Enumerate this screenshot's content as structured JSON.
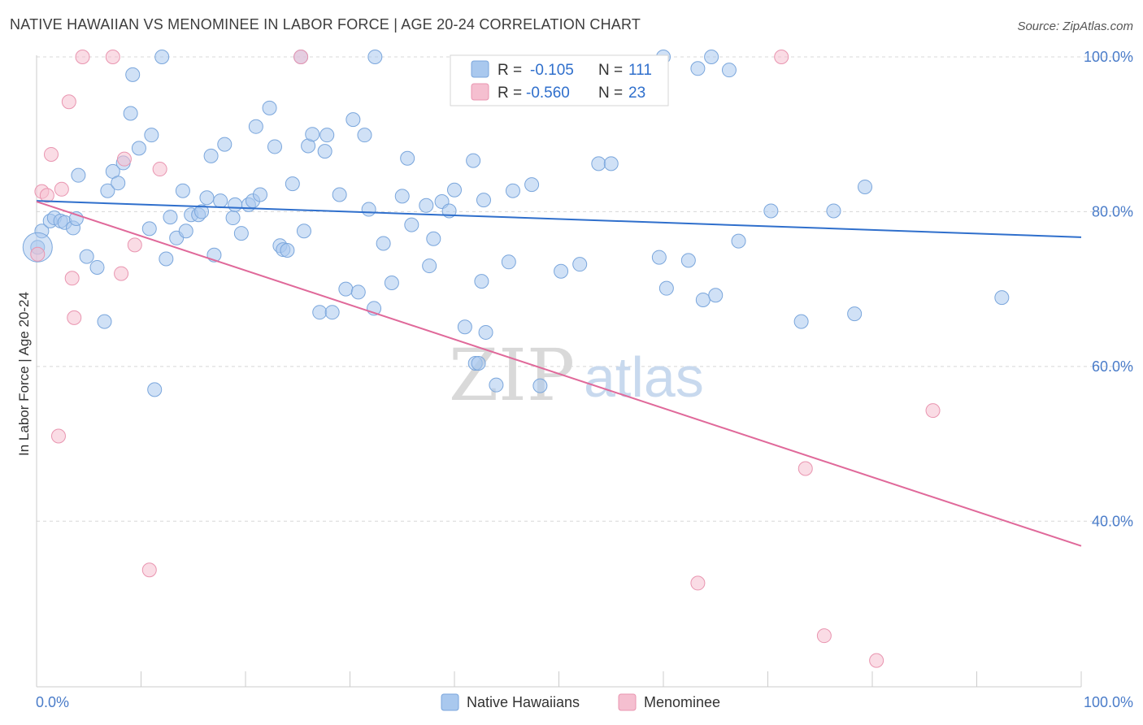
{
  "header": {
    "title": "NATIVE HAWAIIAN VS MENOMINEE IN LABOR FORCE | AGE 20-24 CORRELATION CHART",
    "source": "Source: ZipAtlas.com"
  },
  "watermark": {
    "zip": "ZIP",
    "atlas": "atlas"
  },
  "colors": {
    "blue_fill": "#a9c8ee",
    "blue_stroke": "#7aa6dc",
    "blue_line": "#2f6fcc",
    "pink_fill": "#f5bfd0",
    "pink_stroke": "#e995b0",
    "pink_line": "#e0699a",
    "grid": "#d8d8d8",
    "tick_text": "#4a7cc9"
  },
  "legend": {
    "rows": [
      {
        "r_label": "R =",
        "r_value": "-0.105",
        "n_label": "N =",
        "n_value": "111"
      },
      {
        "r_label": "R =",
        "r_value": "-0.560",
        "n_label": "N =",
        "n_value": "23"
      }
    ]
  },
  "bottom_legend": {
    "items": [
      "Native Hawaiians",
      "Menominee"
    ]
  },
  "chart_data": {
    "type": "scatter",
    "title": "NATIVE HAWAIIAN VS MENOMINEE IN LABOR FORCE | AGE 20-24 CORRELATION CHART",
    "xlabel": "",
    "ylabel": "In Labor Force | Age 20-24",
    "xlim": [
      0,
      100
    ],
    "ylim": [
      18.6,
      100
    ],
    "x_tick_labels": [
      "0.0%",
      "100.0%"
    ],
    "y_ticks": [
      40,
      60,
      80,
      100
    ],
    "y_tick_labels": [
      "40.0%",
      "60.0%",
      "80.0%",
      "100.0%"
    ],
    "grid": true,
    "legend_position": "top-center",
    "series": [
      {
        "name": "Native Hawaiians",
        "r": -0.105,
        "n": 111,
        "trend": {
          "x": [
            0,
            100
          ],
          "y": [
            81.4,
            76.7
          ]
        },
        "points": [
          [
            0.1,
            75.4
          ],
          [
            0.5,
            77.5
          ],
          [
            1.3,
            78.8
          ],
          [
            1.7,
            79.2
          ],
          [
            2.3,
            78.8
          ],
          [
            2.7,
            78.6
          ],
          [
            3.5,
            77.9
          ],
          [
            3.8,
            79.1
          ],
          [
            4.0,
            84.7
          ],
          [
            4.8,
            74.2
          ],
          [
            5.8,
            72.8
          ],
          [
            6.5,
            65.8
          ],
          [
            6.8,
            82.7
          ],
          [
            7.3,
            85.2
          ],
          [
            7.8,
            83.7
          ],
          [
            8.3,
            86.3
          ],
          [
            9.0,
            92.7
          ],
          [
            9.2,
            97.7
          ],
          [
            9.8,
            88.2
          ],
          [
            10.8,
            77.8
          ],
          [
            11.0,
            89.9
          ],
          [
            11.3,
            57.0
          ],
          [
            12.0,
            100
          ],
          [
            12.4,
            73.9
          ],
          [
            12.8,
            79.3
          ],
          [
            13.4,
            76.6
          ],
          [
            14.0,
            82.7
          ],
          [
            14.3,
            77.5
          ],
          [
            14.8,
            79.6
          ],
          [
            15.5,
            79.6
          ],
          [
            15.8,
            80.0
          ],
          [
            16.3,
            81.8
          ],
          [
            16.7,
            87.2
          ],
          [
            17.0,
            74.4
          ],
          [
            17.6,
            81.4
          ],
          [
            18.0,
            88.7
          ],
          [
            18.8,
            79.2
          ],
          [
            19.0,
            80.9
          ],
          [
            19.6,
            77.2
          ],
          [
            20.3,
            80.9
          ],
          [
            20.7,
            81.4
          ],
          [
            21.0,
            91.0
          ],
          [
            21.4,
            82.2
          ],
          [
            22.3,
            93.4
          ],
          [
            22.8,
            88.4
          ],
          [
            23.3,
            75.6
          ],
          [
            23.6,
            75.1
          ],
          [
            24.0,
            75.0
          ],
          [
            24.5,
            83.6
          ],
          [
            25.3,
            100
          ],
          [
            25.6,
            77.5
          ],
          [
            26.0,
            88.5
          ],
          [
            26.4,
            90.0
          ],
          [
            27.1,
            67.0
          ],
          [
            27.6,
            87.8
          ],
          [
            27.8,
            89.9
          ],
          [
            28.3,
            67.0
          ],
          [
            29.0,
            82.2
          ],
          [
            29.6,
            70.0
          ],
          [
            30.3,
            91.9
          ],
          [
            30.8,
            69.6
          ],
          [
            31.4,
            89.9
          ],
          [
            31.8,
            80.3
          ],
          [
            32.3,
            67.5
          ],
          [
            32.4,
            100
          ],
          [
            33.2,
            75.9
          ],
          [
            34.0,
            70.8
          ],
          [
            35.0,
            82.0
          ],
          [
            35.5,
            86.9
          ],
          [
            35.9,
            78.3
          ],
          [
            37.3,
            80.8
          ],
          [
            37.6,
            73.0
          ],
          [
            38.0,
            76.5
          ],
          [
            38.8,
            81.3
          ],
          [
            39.5,
            80.1
          ],
          [
            40.0,
            82.8
          ],
          [
            41.0,
            65.1
          ],
          [
            41.8,
            86.6
          ],
          [
            42.0,
            60.4
          ],
          [
            42.3,
            60.4
          ],
          [
            42.6,
            71.0
          ],
          [
            42.8,
            81.5
          ],
          [
            43.0,
            64.4
          ],
          [
            44.0,
            57.6
          ],
          [
            45.2,
            73.5
          ],
          [
            45.6,
            82.7
          ],
          [
            47.4,
            83.5
          ],
          [
            48.2,
            57.5
          ],
          [
            50.2,
            72.3
          ],
          [
            52.0,
            73.2
          ],
          [
            53.8,
            86.2
          ],
          [
            55.0,
            86.2
          ],
          [
            60.0,
            100
          ],
          [
            59.6,
            74.1
          ],
          [
            60.3,
            70.1
          ],
          [
            62.4,
            73.7
          ],
          [
            63.3,
            98.5
          ],
          [
            63.8,
            68.6
          ],
          [
            64.6,
            100
          ],
          [
            65.0,
            69.2
          ],
          [
            66.3,
            98.3
          ],
          [
            67.2,
            76.2
          ],
          [
            70.3,
            80.1
          ],
          [
            73.2,
            65.8
          ],
          [
            76.3,
            80.1
          ],
          [
            78.3,
            66.8
          ],
          [
            79.3,
            83.2
          ],
          [
            92.4,
            68.9
          ]
        ]
      },
      {
        "name": "Menominee",
        "r": -0.56,
        "n": 23,
        "trend": {
          "x": [
            0,
            100
          ],
          "y": [
            81.3,
            36.8
          ]
        },
        "points": [
          [
            0.1,
            74.5
          ],
          [
            0.5,
            82.6
          ],
          [
            1.0,
            82.1
          ],
          [
            1.4,
            87.4
          ],
          [
            2.1,
            51.0
          ],
          [
            2.4,
            82.9
          ],
          [
            3.1,
            94.2
          ],
          [
            3.4,
            71.4
          ],
          [
            3.6,
            66.3
          ],
          [
            4.4,
            100
          ],
          [
            7.3,
            100
          ],
          [
            8.1,
            72.0
          ],
          [
            8.4,
            86.8
          ],
          [
            9.4,
            75.7
          ],
          [
            10.8,
            33.7
          ],
          [
            11.8,
            85.5
          ],
          [
            25.3,
            100
          ],
          [
            63.3,
            32.0
          ],
          [
            71.3,
            100
          ],
          [
            73.6,
            46.8
          ],
          [
            75.4,
            25.2
          ],
          [
            80.4,
            22.0
          ],
          [
            85.8,
            54.3
          ]
        ]
      }
    ]
  }
}
